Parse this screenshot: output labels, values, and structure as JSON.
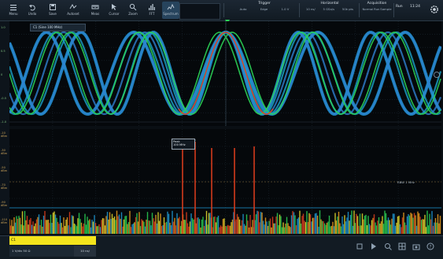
{
  "toolbar": {
    "items": [
      {
        "label": "Menu",
        "icon": "menu-icon"
      },
      {
        "label": "Undo",
        "icon": "undo-icon"
      },
      {
        "label": "Save",
        "icon": "save-icon"
      },
      {
        "label": "Autoset",
        "icon": "autoset-icon"
      },
      {
        "label": "Meas",
        "icon": "measure-icon"
      },
      {
        "label": "Cursor",
        "icon": "cursor-icon"
      },
      {
        "label": "Zoom",
        "icon": "zoom-icon"
      },
      {
        "label": "FFT",
        "icon": "fft-icon"
      },
      {
        "label": "Spectrum",
        "icon": "spectrum-icon"
      }
    ],
    "groups": [
      {
        "title": "Trigger",
        "row": [
          "Auto",
          "Edge",
          "1.0 V"
        ]
      },
      {
        "title": "Horizontal",
        "row": [
          "10 ns/",
          "5 GSa/s",
          "50k pts"
        ]
      },
      {
        "title": "Acquisition",
        "row": [
          "Normal",
          "Run",
          "Sample"
        ]
      }
    ],
    "right_label": "Run",
    "clock": "11:24"
  },
  "signal_label": "C1 (Sine 100 MHz)",
  "panel1_ylabels": [
    "1.0",
    "0.5",
    "0",
    "-0.5",
    "-1.0"
  ],
  "panel2_ylabels": [
    "-10 dBm",
    "-30 dBm",
    "-50 dBm",
    "-70 dBm",
    "-90 dBm",
    "-110 dBm"
  ],
  "cursor_box": {
    "line1": "Peak",
    "line2": "100 MHz"
  },
  "right_label": "RBW 1 MHz",
  "bottom": {
    "ch1_tag": "C1",
    "ch1_info": "1 V/div  50 Ω",
    "timebase": "10 ns/"
  },
  "colors": {
    "accent": "#f4e41c",
    "trace_blue": "#1e9ad6",
    "trace_green": "#2bd455",
    "trace_red": "#e0401e"
  }
}
